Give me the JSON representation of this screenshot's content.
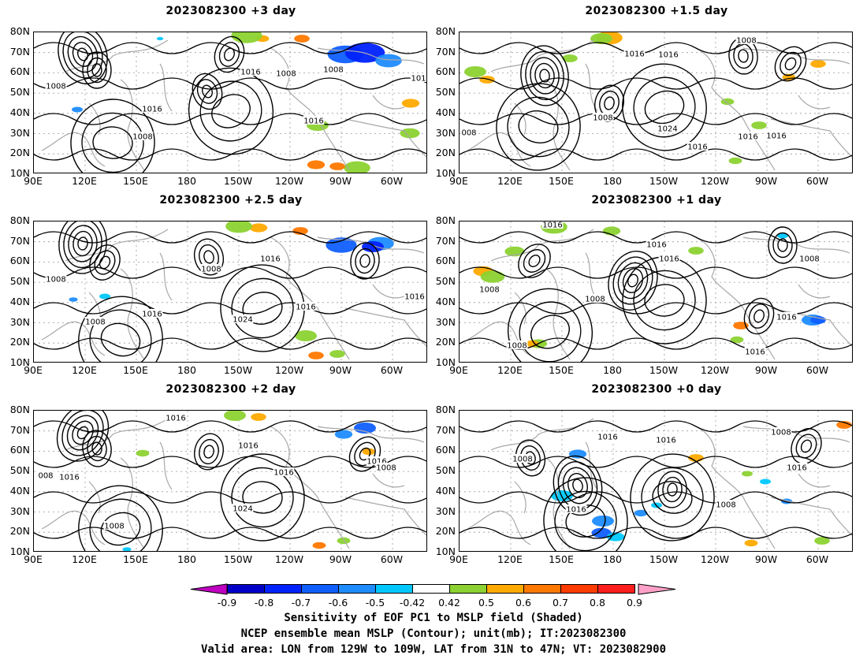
{
  "panels": [
    {
      "title": "2023082300  +3 day"
    },
    {
      "title": "2023082300  +1.5 day"
    },
    {
      "title": "2023082300  +2.5 day"
    },
    {
      "title": "2023082300  +1 day"
    },
    {
      "title": "2023082300  +2 day"
    },
    {
      "title": "2023082300  +0 day"
    }
  ],
  "axes": {
    "lat_labels": [
      "80N",
      "70N",
      "60N",
      "50N",
      "40N",
      "30N",
      "20N",
      "10N"
    ],
    "lon_labels": [
      "90E",
      "120E",
      "150E",
      "180",
      "150W",
      "120W",
      "90W",
      "60W"
    ]
  },
  "contour_labels": {
    "p0": [
      "1008",
      "1016",
      "1008",
      "1008",
      "1016",
      "101",
      "1016",
      "1008"
    ],
    "p1": [
      "1008",
      "1016",
      "1016",
      "1008",
      "1024",
      "1016",
      "1016",
      "1016",
      "008"
    ],
    "p2": [
      "1008",
      "1016",
      "1016",
      "1008",
      "1024",
      "1016",
      "1008",
      "1016"
    ],
    "p3": [
      "1016",
      "1016",
      "1016",
      "1008",
      "1016",
      "1008",
      "1016",
      "1008",
      "1008"
    ],
    "p4": [
      "1016",
      "1016",
      "1016",
      "1008",
      "1024",
      "1016",
      "1008",
      "1016",
      "008"
    ],
    "p5": [
      "1016",
      "1016",
      "1008",
      "1008",
      "1016",
      "1008",
      "1016"
    ]
  },
  "colorbar": {
    "ticks": [
      "-0.9",
      "-0.8",
      "-0.7",
      "-0.6",
      "-0.5",
      "-0.42",
      "0.42",
      "0.5",
      "0.6",
      "0.7",
      "0.8",
      "0.9"
    ],
    "colors": [
      "#c000c0",
      "#0000c8",
      "#0022ff",
      "#0f5fff",
      "#1e8cff",
      "#00c8ff",
      "#ffffff",
      "#8cd232",
      "#ffaa00",
      "#ff7800",
      "#ff3c00",
      "#ff1e1e",
      "#ffa0c8"
    ]
  },
  "captions": {
    "line1": "Sensitivity of EOF PC1 to MSLP field (Shaded)",
    "line2": "NCEP ensemble mean MSLP (Contour); unit(mb); IT:2023082300",
    "line3": "Valid area: LON from 129W to 109W, LAT from 31N to 47N; VT: 2023082900"
  }
}
